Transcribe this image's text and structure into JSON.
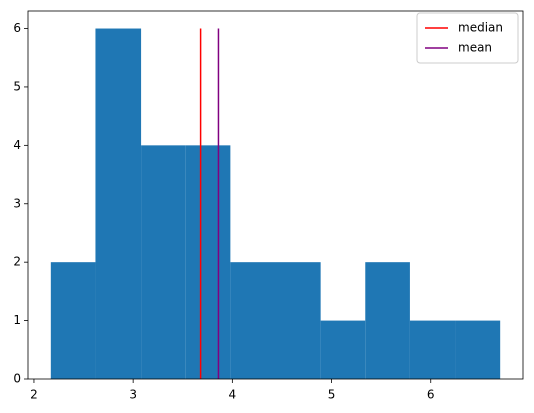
{
  "chart_data": {
    "type": "histogram",
    "bins": [
      2.17,
      2.62,
      3.08,
      3.53,
      3.98,
      4.43,
      4.89,
      5.34,
      5.79,
      6.25,
      6.7
    ],
    "counts": [
      2,
      6,
      4,
      4,
      2,
      2,
      1,
      2,
      1,
      1
    ],
    "color": "#1f77b4",
    "lines": [
      {
        "name": "median",
        "color": "#ff0000",
        "x": 3.68,
        "ymin": 0,
        "ymax": 6
      },
      {
        "name": "mean",
        "color": "#800080",
        "x": 3.86,
        "ymin": 0,
        "ymax": 6
      }
    ],
    "xlim": [
      1.94,
      6.93
    ],
    "ylim": [
      0,
      6.3
    ],
    "xticks": [
      2,
      3,
      4,
      5,
      6
    ],
    "yticks": [
      0,
      1,
      2,
      3,
      4,
      5,
      6
    ],
    "legend": "upper right"
  }
}
